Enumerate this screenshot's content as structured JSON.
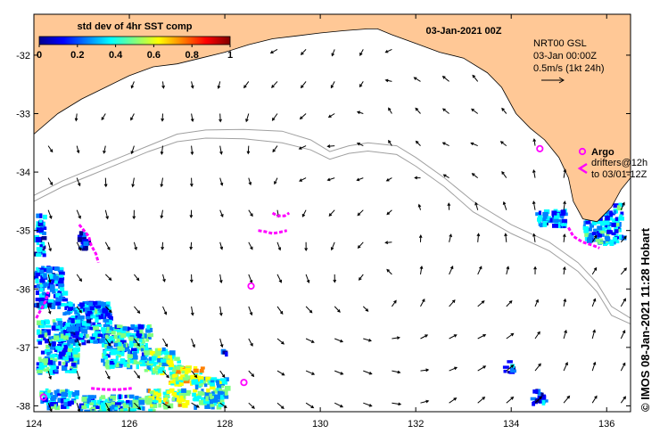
{
  "title": "03-Jan-2021 00Z",
  "colorbar": {
    "label": "std dev of 4hr SST comp",
    "ticks": [
      "0",
      "0.2",
      "0.4",
      "0.6",
      "0.8",
      "1"
    ],
    "colors": [
      "#00008f",
      "#0000ff",
      "#0080ff",
      "#00ffff",
      "#80ff80",
      "#ffff00",
      "#ff8000",
      "#ff0000",
      "#800000"
    ]
  },
  "product": {
    "line1": "NRT00 GSL",
    "line2": "03-Jan 00:00Z",
    "scale_label": "0.5m/s (1kt 24h)"
  },
  "legend": {
    "argo_label": "Argo",
    "drifters_line1": "drifters@12h",
    "drifters_line2": "to 03/01-12Z"
  },
  "credit": "©  IMOS 08-Jan-2021 11:28 Hobart",
  "map": {
    "lon_range": [
      124,
      136.5
    ],
    "lat_range": [
      -38.1,
      -31.3
    ],
    "x_ticks": [
      {
        "lon": 124,
        "label": "124"
      },
      {
        "lon": 126,
        "label": "126"
      },
      {
        "lon": 128,
        "label": "128"
      },
      {
        "lon": 130,
        "label": "130"
      },
      {
        "lon": 132,
        "label": "132"
      },
      {
        "lon": 134,
        "label": "134"
      },
      {
        "lon": 136,
        "label": "136"
      }
    ],
    "y_ticks": [
      {
        "lat": -32,
        "label": "-32"
      },
      {
        "lat": -33,
        "label": "-33"
      },
      {
        "lat": -34,
        "label": "-34"
      },
      {
        "lat": -35,
        "label": "-35"
      },
      {
        "lat": -36,
        "label": "-36"
      },
      {
        "lat": -37,
        "label": "-37"
      },
      {
        "lat": -38,
        "label": "-38"
      }
    ],
    "land_color": "#ffc896",
    "bathy_color": "#a0a0a0",
    "argo_color": "#ff00ff",
    "coastline": [
      [
        124,
        -33.35
      ],
      [
        124.5,
        -33.0
      ],
      [
        125,
        -32.75
      ],
      [
        125.5,
        -32.55
      ],
      [
        126,
        -32.35
      ],
      [
        126.5,
        -32.2
      ],
      [
        127,
        -32.15
      ],
      [
        127.5,
        -32.05
      ],
      [
        128,
        -31.95
      ],
      [
        128.5,
        -31.82
      ],
      [
        129,
        -31.72
      ],
      [
        129.5,
        -31.67
      ],
      [
        130,
        -31.62
      ],
      [
        130.5,
        -31.58
      ],
      [
        131,
        -31.55
      ],
      [
        131.2,
        -31.55
      ],
      [
        131.5,
        -31.65
      ],
      [
        132,
        -31.8
      ],
      [
        132.5,
        -31.95
      ],
      [
        133,
        -32.05
      ],
      [
        133.5,
        -32.3
      ],
      [
        133.8,
        -32.55
      ],
      [
        134.1,
        -33.0
      ],
      [
        134.4,
        -33.25
      ],
      [
        134.7,
        -33.45
      ],
      [
        135.0,
        -33.75
      ],
      [
        135.2,
        -34.1
      ],
      [
        135.3,
        -34.5
      ],
      [
        135.5,
        -34.8
      ],
      [
        135.8,
        -34.85
      ],
      [
        136.1,
        -34.6
      ],
      [
        136.3,
        -34.3
      ],
      [
        136.5,
        -34.1
      ]
    ],
    "isobaths": [
      [
        [
          124,
          -34.4
        ],
        [
          124.6,
          -34.15
        ],
        [
          125.2,
          -33.95
        ],
        [
          125.8,
          -33.75
        ],
        [
          126.4,
          -33.55
        ],
        [
          127,
          -33.35
        ],
        [
          127.6,
          -33.28
        ],
        [
          128.4,
          -33.27
        ],
        [
          129.2,
          -33.3
        ],
        [
          129.8,
          -33.45
        ],
        [
          130.2,
          -33.65
        ],
        [
          130.6,
          -33.55
        ],
        [
          131.0,
          -33.5
        ],
        [
          131.6,
          -33.55
        ],
        [
          132.0,
          -33.75
        ],
        [
          132.6,
          -34.1
        ],
        [
          133.2,
          -34.5
        ],
        [
          134.0,
          -34.9
        ],
        [
          134.8,
          -35.2
        ],
        [
          135.4,
          -35.55
        ],
        [
          135.8,
          -35.9
        ],
        [
          136.1,
          -36.3
        ],
        [
          136.5,
          -36.5
        ]
      ],
      [
        [
          124,
          -34.5
        ],
        [
          124.6,
          -34.25
        ],
        [
          125.2,
          -34.05
        ],
        [
          125.8,
          -33.85
        ],
        [
          126.4,
          -33.65
        ],
        [
          127,
          -33.48
        ],
        [
          127.6,
          -33.42
        ],
        [
          128.4,
          -33.43
        ],
        [
          129.2,
          -33.5
        ],
        [
          129.8,
          -33.62
        ],
        [
          130.2,
          -33.78
        ],
        [
          130.6,
          -33.68
        ],
        [
          131.0,
          -33.64
        ],
        [
          131.6,
          -33.7
        ],
        [
          132.0,
          -33.9
        ],
        [
          132.6,
          -34.25
        ],
        [
          133.2,
          -34.68
        ],
        [
          134.0,
          -35.05
        ],
        [
          134.8,
          -35.35
        ],
        [
          135.4,
          -35.7
        ],
        [
          135.8,
          -36.05
        ],
        [
          136.1,
          -36.45
        ],
        [
          136.5,
          -36.6
        ]
      ]
    ],
    "argo_tracks": [
      [
        [
          124.95,
          -34.9
        ],
        [
          125.05,
          -35.0
        ],
        [
          125.15,
          -35.1
        ],
        [
          125.2,
          -35.25
        ],
        [
          125.3,
          -35.4
        ],
        [
          125.35,
          -35.55
        ]
      ],
      [
        [
          129.0,
          -34.7
        ],
        [
          129.1,
          -34.75
        ],
        [
          129.25,
          -34.75
        ],
        [
          129.35,
          -34.7
        ]
      ],
      [
        [
          128.7,
          -35.0
        ],
        [
          128.85,
          -35.02
        ],
        [
          129.0,
          -35.05
        ],
        [
          129.15,
          -35.03
        ],
        [
          129.3,
          -35.0
        ]
      ],
      [
        [
          135.2,
          -34.95
        ],
        [
          135.3,
          -35.1
        ],
        [
          135.5,
          -35.2
        ],
        [
          135.7,
          -35.25
        ],
        [
          135.85,
          -35.3
        ]
      ],
      [
        [
          124.05,
          -36.5
        ],
        [
          124.15,
          -36.35
        ],
        [
          124.25,
          -36.2
        ],
        [
          124.3,
          -36.05
        ]
      ],
      [
        [
          125.2,
          -37.7
        ],
        [
          125.5,
          -37.72
        ],
        [
          125.8,
          -37.72
        ],
        [
          126.05,
          -37.7
        ]
      ]
    ],
    "argo_rings": [
      [
        128.55,
        -35.95
      ],
      [
        128.4,
        -37.6
      ],
      [
        124.2,
        -37.85
      ],
      [
        134.6,
        -33.6
      ]
    ],
    "sst_patches": [
      [
        124.05,
        -36.5,
        124.9,
        -37.4,
        0.3
      ],
      [
        124.6,
        -36.2,
        125.6,
        -36.9,
        0.25
      ],
      [
        125.4,
        -36.6,
        126.4,
        -37.3,
        0.35
      ],
      [
        126.3,
        -37.0,
        127.0,
        -37.4,
        0.45
      ],
      [
        126.8,
        -37.3,
        127.5,
        -37.6,
        0.55
      ],
      [
        124.1,
        -37.7,
        124.9,
        -38.0,
        0.3
      ],
      [
        124.9,
        -37.8,
        126.5,
        -38.1,
        0.35
      ],
      [
        126.3,
        -37.7,
        127.2,
        -38.0,
        0.5
      ],
      [
        127.3,
        -37.5,
        128.0,
        -38.0,
        0.4
      ],
      [
        124.0,
        -35.6,
        124.6,
        -36.3,
        0.25
      ],
      [
        124.0,
        -34.7,
        124.2,
        -35.4,
        0.2
      ],
      [
        124.9,
        -35.0,
        125.1,
        -35.3,
        0.1
      ],
      [
        127.9,
        -37.0,
        128.0,
        -37.15,
        0.2
      ],
      [
        134.5,
        -34.6,
        135.1,
        -34.9,
        0.25
      ],
      [
        135.5,
        -34.5,
        136.3,
        -35.2,
        0.3
      ],
      [
        134.4,
        -37.7,
        134.7,
        -37.95,
        0.2
      ],
      [
        133.8,
        -37.2,
        134.0,
        -37.4,
        0.15
      ]
    ],
    "current_arrows": {
      "lon_step": 0.6,
      "lat_step": 0.55,
      "vortex_lon": 131.4,
      "vortex_lat": -36.2
    }
  }
}
